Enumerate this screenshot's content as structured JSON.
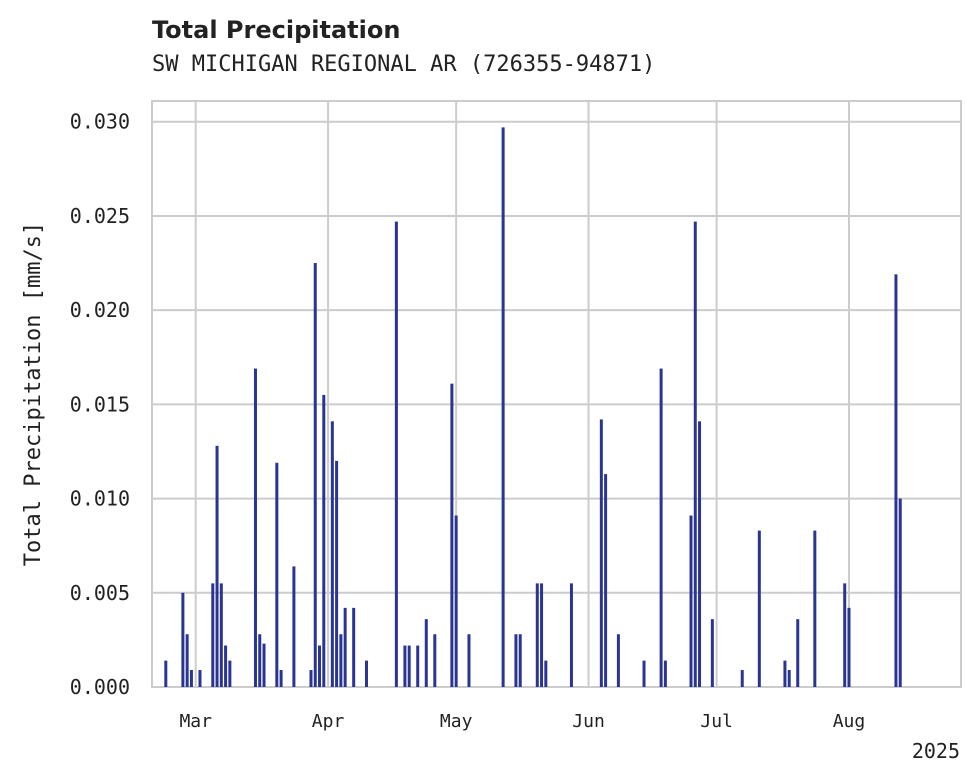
{
  "chart_data": {
    "type": "bar",
    "title": "Total Precipitation",
    "subtitle": "SW MICHIGAN REGIONAL AR (726355-94871)",
    "ylabel": "Total Precipitation [mm/s]",
    "xlabel": "",
    "ylim": [
      0,
      0.0311
    ],
    "xlim": [
      "2025-02-19",
      "2025-08-27"
    ],
    "yticks": [
      "0.000",
      "0.005",
      "0.010",
      "0.015",
      "0.020",
      "0.025",
      "0.030"
    ],
    "xticks": [
      {
        "date": "2025-03-01",
        "label": "Mar"
      },
      {
        "date": "2025-04-01",
        "label": "Apr"
      },
      {
        "date": "2025-05-01",
        "label": "May"
      },
      {
        "date": "2025-06-01",
        "label": "Jun"
      },
      {
        "date": "2025-07-01",
        "label": "Jul"
      },
      {
        "date": "2025-08-01",
        "label": "Aug"
      }
    ],
    "year_label": "2025",
    "grid": true,
    "bar_color": "#2a3593",
    "series": [
      {
        "x": [
          "2025-02-22",
          "2025-02-26",
          "2025-02-27",
          "2025-02-28",
          "2025-03-02",
          "2025-03-05",
          "2025-03-06",
          "2025-03-07",
          "2025-03-08",
          "2025-03-09",
          "2025-03-15",
          "2025-03-16",
          "2025-03-17",
          "2025-03-20",
          "2025-03-21",
          "2025-03-24",
          "2025-03-28",
          "2025-03-29",
          "2025-03-30",
          "2025-03-31",
          "2025-04-02",
          "2025-04-03",
          "2025-04-04",
          "2025-04-05",
          "2025-04-07",
          "2025-04-10",
          "2025-04-17",
          "2025-04-19",
          "2025-04-20",
          "2025-04-22",
          "2025-04-24",
          "2025-04-26",
          "2025-04-30",
          "2025-05-01",
          "2025-05-04",
          "2025-05-12",
          "2025-05-15",
          "2025-05-16",
          "2025-05-20",
          "2025-05-21",
          "2025-05-22",
          "2025-05-28",
          "2025-06-04",
          "2025-06-05",
          "2025-06-08",
          "2025-06-14",
          "2025-06-18",
          "2025-06-19",
          "2025-06-25",
          "2025-06-26",
          "2025-06-27",
          "2025-06-30",
          "2025-07-07",
          "2025-07-11",
          "2025-07-17",
          "2025-07-18",
          "2025-07-20",
          "2025-07-24",
          "2025-07-31",
          "2025-08-01",
          "2025-08-12",
          "2025-08-13"
        ],
        "values": [
          0.0014,
          0.005,
          0.0028,
          0.0009,
          0.0009,
          0.0055,
          0.0128,
          0.0055,
          0.0022,
          0.0014,
          0.0169,
          0.0028,
          0.0023,
          0.0119,
          0.0009,
          0.0064,
          0.0009,
          0.0225,
          0.0022,
          0.0155,
          0.0141,
          0.012,
          0.0028,
          0.0042,
          0.0042,
          0.0014,
          0.0247,
          0.0022,
          0.0022,
          0.0022,
          0.0036,
          0.0028,
          0.0161,
          0.0091,
          0.0028,
          0.0297,
          0.0028,
          0.0028,
          0.0055,
          0.0055,
          0.0014,
          0.0055,
          0.0142,
          0.0113,
          0.0028,
          0.0014,
          0.0169,
          0.0014,
          0.0091,
          0.0247,
          0.0141,
          0.0036,
          0.0009,
          0.0083,
          0.0014,
          0.0009,
          0.0036,
          0.0083,
          0.0055,
          0.0042,
          0.0219,
          0.01
        ]
      }
    ]
  }
}
